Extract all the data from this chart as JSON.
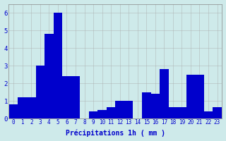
{
  "values": [
    0.8,
    1.2,
    1.2,
    3.0,
    4.8,
    6.0,
    2.4,
    2.4,
    0.0,
    0.4,
    0.5,
    0.65,
    1.0,
    1.0,
    0.0,
    1.5,
    1.4,
    2.8,
    0.65,
    0.65,
    2.5,
    2.5,
    0.4,
    0.65
  ],
  "bar_color": "#0000cc",
  "background_color": "#ceeaea",
  "grid_color": "#aaaaaa",
  "xlabel": "Précipitations 1h ( mm )",
  "xlabel_color": "#0000cc",
  "tick_color": "#0000cc",
  "ylim": [
    0,
    6.5
  ],
  "yticks": [
    0,
    1,
    2,
    3,
    4,
    5,
    6
  ],
  "bar_width": 1.0,
  "xlabel_fontsize": 7,
  "tick_fontsize": 5.5
}
